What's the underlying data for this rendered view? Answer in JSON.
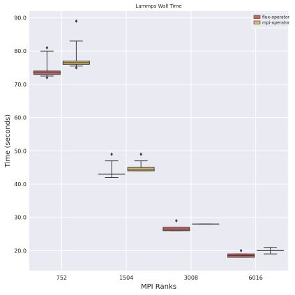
{
  "chart_data": {
    "type": "box",
    "title": "Lammps Wall Time",
    "xlabel": "MPI Ranks",
    "ylabel": "Time (seconds)",
    "categories": [
      "752",
      "1504",
      "3008",
      "6016"
    ],
    "ylim": [
      14,
      92
    ],
    "yticks": [
      20,
      30,
      40,
      50,
      60,
      70,
      80,
      90
    ],
    "ytick_labels": [
      "20.0",
      "30.0",
      "40.0",
      "50.0",
      "60.0",
      "70.0",
      "80.0",
      "90.0"
    ],
    "grid": true,
    "legend_position": "top-right",
    "series": [
      {
        "name": "flux-operator",
        "color": "#cd6461",
        "boxes": [
          {
            "category": "752",
            "whisker_low": 72.5,
            "q1": 73,
            "median": 73.5,
            "q3": 74,
            "whisker_high": 80,
            "outliers": [
              81,
              72
            ]
          },
          {
            "category": "1504",
            "whisker_low": 42,
            "q1": 43,
            "median": 43,
            "q3": 43,
            "whisker_high": 47,
            "outliers": [
              49
            ]
          },
          {
            "category": "3008",
            "whisker_low": 26,
            "q1": 26,
            "median": 26.5,
            "q3": 27,
            "whisker_high": 27,
            "outliers": [
              29
            ]
          },
          {
            "category": "6016",
            "whisker_low": 18,
            "q1": 18,
            "median": 18.5,
            "q3": 19,
            "whisker_high": 19,
            "outliers": [
              20
            ]
          }
        ]
      },
      {
        "name": "mpi-operator",
        "color": "#d9bd63",
        "boxes": [
          {
            "category": "752",
            "whisker_low": 75.5,
            "q1": 76,
            "median": 76.5,
            "q3": 77,
            "whisker_high": 83,
            "outliers": [
              89,
              75
            ]
          },
          {
            "category": "1504",
            "whisker_low": 44,
            "q1": 44,
            "median": 44.5,
            "q3": 45,
            "whisker_high": 47,
            "outliers": [
              49
            ]
          },
          {
            "category": "3008",
            "whisker_low": 28,
            "q1": 28,
            "median": 28,
            "q3": 28,
            "whisker_high": 28,
            "outliers": []
          },
          {
            "category": "6016",
            "whisker_low": 19,
            "q1": 20,
            "median": 20,
            "q3": 20,
            "whisker_high": 21,
            "outliers": []
          }
        ]
      }
    ]
  }
}
